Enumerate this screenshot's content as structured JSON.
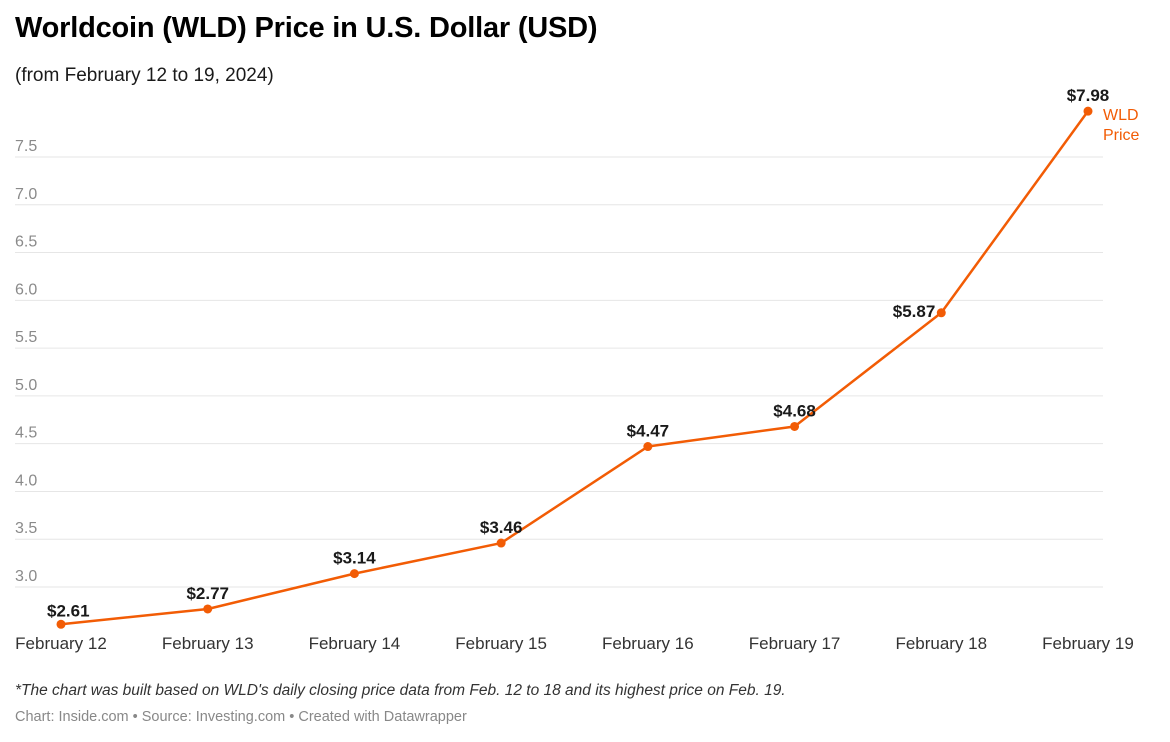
{
  "title": "Worldcoin (WLD) Price in U.S. Dollar (USD)",
  "subtitle": "(from February 12 to 19, 2024)",
  "note": "*The chart was built based on WLD's daily closing price data from Feb. 12 to 18 and its highest price on Feb. 19.",
  "footer": "Chart: Inside.com • Source: Investing.com • Created with Datawrapper",
  "colors": {
    "line": "#f25c05",
    "grid": "#e6e6e6"
  },
  "chart_data": {
    "type": "line",
    "categories": [
      "February 12",
      "February 13",
      "February 14",
      "February 15",
      "February 16",
      "February 17",
      "February 18",
      "February 19"
    ],
    "series": [
      {
        "name": "WLD Price",
        "values": [
          2.61,
          2.77,
          3.14,
          3.46,
          4.47,
          4.68,
          5.87,
          7.98
        ],
        "labels": [
          "$2.61",
          "$2.77",
          "$3.14",
          "$3.46",
          "$4.47",
          "$4.68",
          "$5.87",
          "$7.98"
        ]
      }
    ],
    "yticks": [
      "3.0",
      "3.5",
      "4.0",
      "4.5",
      "5.0",
      "5.5",
      "6.0",
      "6.5",
      "7.0",
      "7.5"
    ],
    "ylim": [
      2.6,
      8.0
    ],
    "grid": true,
    "legend": [
      "WLD",
      "Price"
    ],
    "legend_position": "end of line"
  }
}
